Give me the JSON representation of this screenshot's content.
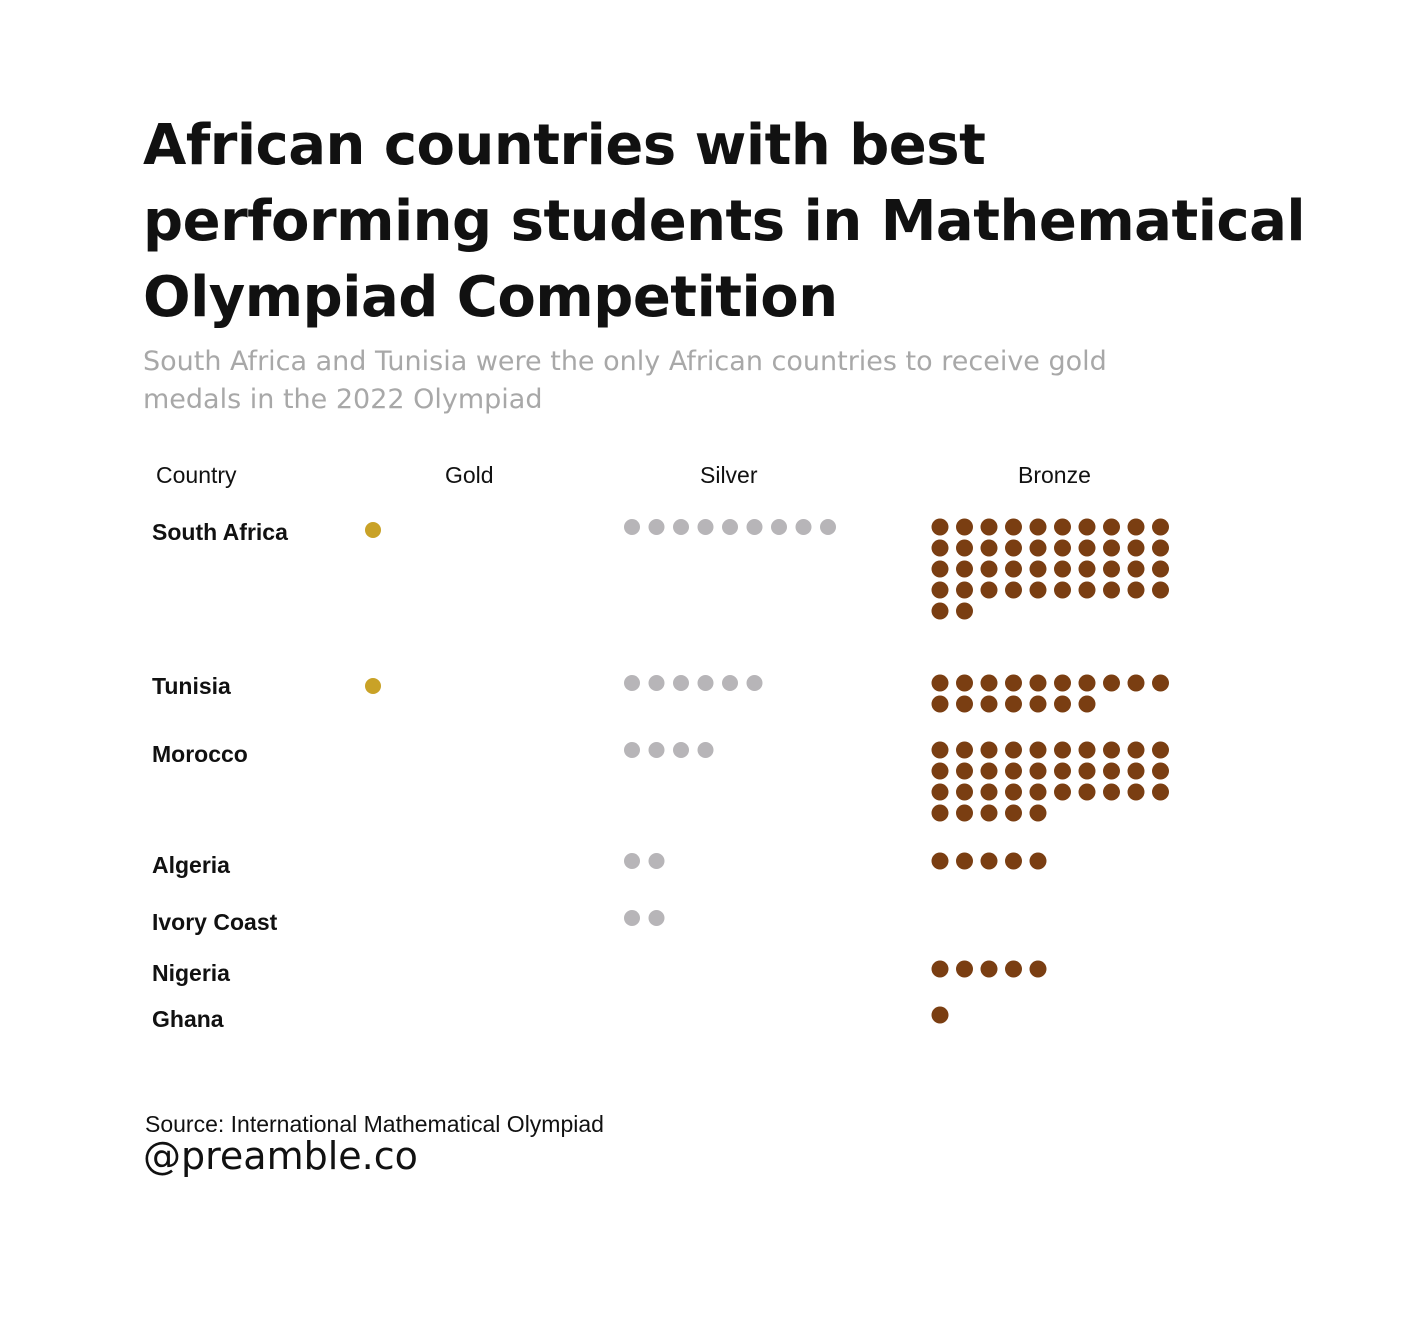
{
  "title": "African countries with best performing students in Mathematical Olympiad Competition",
  "subtitle": "South Africa and Tunisia were the only African countries to receive gold medals in the 2022 Olympiad",
  "source": "Source: International Mathematical Olympiad",
  "handle": "@preamble.co",
  "colors": {
    "gold": "#c9a227",
    "silver": "#b7b5b8",
    "bronze": "#7a3e12"
  },
  "chart_data": {
    "type": "table",
    "columns": [
      "Country",
      "Gold",
      "Silver",
      "Bronze"
    ],
    "rows": [
      {
        "country": "South Africa",
        "gold": 1,
        "silver": 9,
        "bronze": 42
      },
      {
        "country": "Tunisia",
        "gold": 1,
        "silver": 6,
        "bronze": 17
      },
      {
        "country": "Morocco",
        "gold": 0,
        "silver": 4,
        "bronze": 35
      },
      {
        "country": "Algeria",
        "gold": 0,
        "silver": 2,
        "bronze": 5
      },
      {
        "country": "Ivory Coast",
        "gold": 0,
        "silver": 2,
        "bronze": 0
      },
      {
        "country": "Nigeria",
        "gold": 0,
        "silver": 0,
        "bronze": 5
      },
      {
        "country": "Ghana",
        "gold": 0,
        "silver": 0,
        "bronze": 1
      }
    ]
  }
}
